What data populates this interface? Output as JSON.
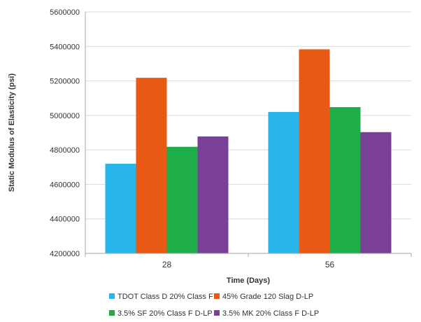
{
  "chart_data": {
    "type": "bar",
    "categories": [
      "28",
      "56"
    ],
    "series": [
      {
        "name": "TDOT Class D 20% Class F",
        "color": "#29b6ea",
        "values": [
          4720000,
          5020000
        ]
      },
      {
        "name": "45% Grade 120 Slag D-LP",
        "color": "#e85a13",
        "values": [
          5218000,
          5383000
        ]
      },
      {
        "name": "3.5% SF 20% Class F D-LP",
        "color": "#1fad4a",
        "values": [
          4818000,
          5048000
        ]
      },
      {
        "name": "3.5% MK 20% Class F D-LP",
        "color": "#7a3f96",
        "values": [
          4878000,
          4903000
        ]
      }
    ],
    "xlabel": "Time (Days)",
    "ylabel": "Static Modulus of Elasticity (psi)",
    "ylim": [
      4200000,
      5600000
    ],
    "yticks": [
      {
        "value": 4200000,
        "label": "4200000"
      },
      {
        "value": 4400000,
        "label": "4400000"
      },
      {
        "value": 4600000,
        "label": "4600000"
      },
      {
        "value": 4800000,
        "label": "4800000"
      },
      {
        "value": 5000000,
        "label": "5000000"
      },
      {
        "value": 5200000,
        "label": "5200000"
      },
      {
        "value": 5400000,
        "label": "5400000"
      },
      {
        "value": 5600000,
        "label": "5600000"
      }
    ],
    "grid": true,
    "legend": "bottom"
  }
}
